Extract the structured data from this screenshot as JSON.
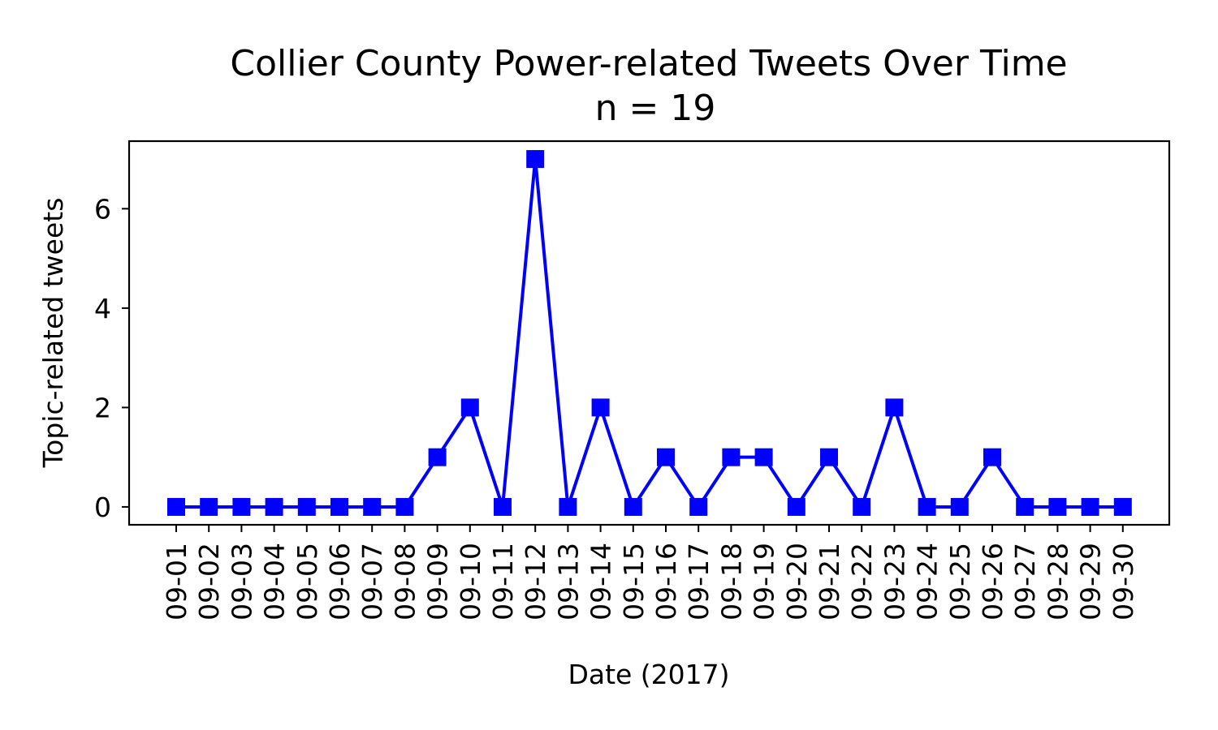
{
  "chart_data": {
    "type": "line",
    "title": "Collier County Power-related Tweets Over Time",
    "subtitle": "n = 19",
    "xlabel": "Date (2017)",
    "ylabel": "Topic-related tweets",
    "categories": [
      "09-01",
      "09-02",
      "09-03",
      "09-04",
      "09-05",
      "09-06",
      "09-07",
      "09-08",
      "09-09",
      "09-10",
      "09-11",
      "09-12",
      "09-13",
      "09-14",
      "09-15",
      "09-16",
      "09-17",
      "09-18",
      "09-19",
      "09-20",
      "09-21",
      "09-22",
      "09-23",
      "09-24",
      "09-25",
      "09-26",
      "09-27",
      "09-28",
      "09-29",
      "09-30"
    ],
    "series": [
      {
        "values": [
          0,
          0,
          0,
          0,
          0,
          0,
          0,
          0,
          1,
          2,
          0,
          7,
          0,
          2,
          0,
          1,
          0,
          1,
          1,
          0,
          1,
          0,
          2,
          0,
          0,
          1,
          0,
          0,
          0,
          0
        ],
        "color": "#0000ff",
        "marker": "square"
      }
    ],
    "yticks": [
      0,
      2,
      4,
      6
    ],
    "ylim": [
      -0.36,
      7.36
    ],
    "grid": false,
    "legend": "none"
  }
}
